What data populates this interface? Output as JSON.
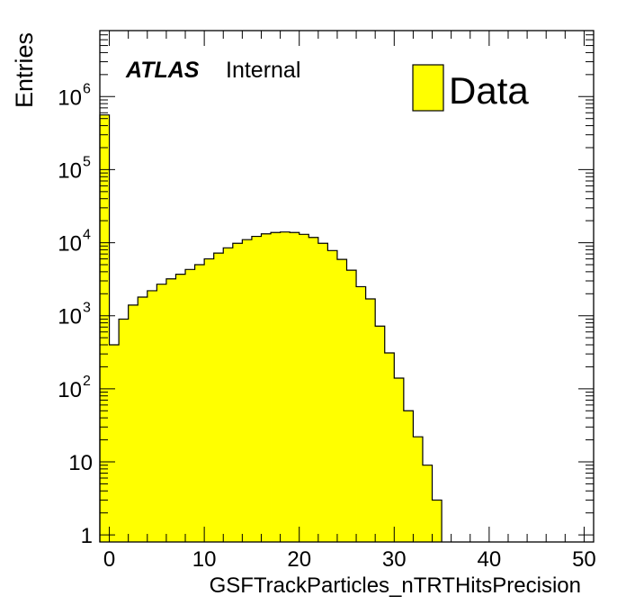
{
  "chart_data": {
    "type": "bar",
    "histogram": true,
    "ylabel": "Entries",
    "xlabel": "GSFTrackParticles_nTRTHitsPrecision",
    "xlim": [
      -1,
      51
    ],
    "ylim": [
      0.8,
      8000000
    ],
    "yscale": "log",
    "bin_width": 1,
    "x": [
      -0.5,
      0.5,
      1.5,
      2.5,
      3.5,
      4.5,
      5.5,
      6.5,
      7.5,
      8.5,
      9.5,
      10.5,
      11.5,
      12.5,
      13.5,
      14.5,
      15.5,
      16.5,
      17.5,
      18.5,
      19.5,
      20.5,
      21.5,
      22.5,
      23.5,
      24.5,
      25.5,
      26.5,
      27.5,
      28.5,
      29.5,
      30.5,
      31.5,
      32.5,
      33.5,
      34.5
    ],
    "series": [
      {
        "name": "Data",
        "color": "#ffff00",
        "values": [
          560000,
          400,
          900,
          1400,
          1800,
          2200,
          2700,
          3200,
          3700,
          4300,
          5000,
          6000,
          7200,
          8500,
          9800,
          11000,
          12200,
          13200,
          13800,
          14000,
          13800,
          13000,
          11800,
          9800,
          7800,
          5900,
          4200,
          2500,
          1700,
          720,
          310,
          140,
          50,
          22,
          9,
          3
        ]
      }
    ],
    "x_ticks": [
      "0",
      "10",
      "20",
      "30",
      "40",
      "50"
    ],
    "y_ticks": [
      {
        "value": 1,
        "base": "1",
        "exp": ""
      },
      {
        "value": 10,
        "base": "10",
        "exp": ""
      },
      {
        "value": 100,
        "base": "10",
        "exp": "2"
      },
      {
        "value": 1000,
        "base": "10",
        "exp": "3"
      },
      {
        "value": 10000,
        "base": "10",
        "exp": "4"
      },
      {
        "value": 100000,
        "base": "10",
        "exp": "5"
      },
      {
        "value": 1000000,
        "base": "10",
        "exp": "6"
      }
    ],
    "legend": {
      "placement": "top-right",
      "label": "Data"
    },
    "annotation": {
      "atlas": "ATLAS",
      "status": "Internal"
    }
  }
}
